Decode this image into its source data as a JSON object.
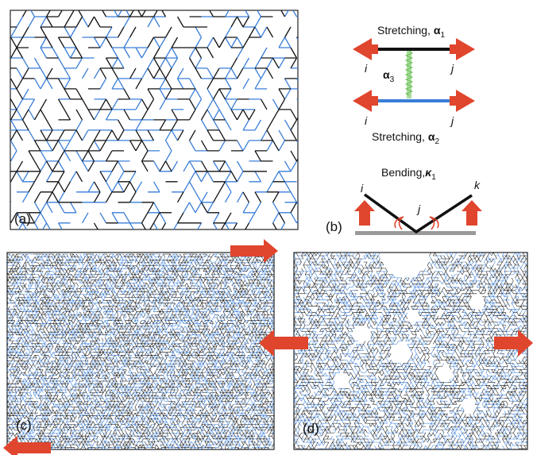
{
  "panels": {
    "a": {
      "label": "(a)"
    },
    "b": {
      "label": "(b)",
      "stretch_top": {
        "text": "Stretching, ",
        "symbol": "α",
        "sub": "1"
      },
      "stretch_bottom": {
        "text": "Stretching, ",
        "symbol": "α",
        "sub": "2"
      },
      "spring": {
        "symbol": "α",
        "sub": "3"
      },
      "bending": {
        "text": "Bending,",
        "symbol": "κ",
        "sub": "1"
      },
      "node_i": "i",
      "node_j": "j",
      "node_k": "k"
    },
    "c": {
      "label": "(c)"
    },
    "d": {
      "label": "(d)"
    }
  },
  "colors": {
    "black_bond": "#111111",
    "blue_bond": "#3a7ed8",
    "arrow": "#e0452e",
    "spring": "#8cd07a",
    "ground": "#9a9a9a"
  }
}
